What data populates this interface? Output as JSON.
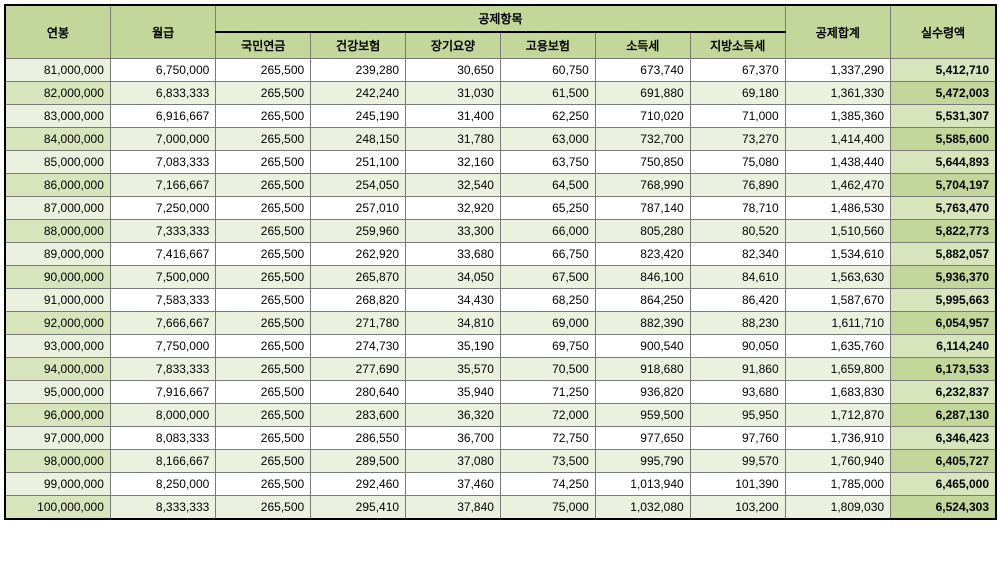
{
  "headers": {
    "salary": "연봉",
    "monthly": "월급",
    "deductionGroup": "공제항목",
    "deductions": [
      "국민연금",
      "건강보험",
      "장기요양",
      "고용보험",
      "소득세",
      "지방소득세"
    ],
    "total": "공제합계",
    "net": "실수령액"
  },
  "rows": [
    [
      "81,000,000",
      "6,750,000",
      "265,500",
      "239,280",
      "30,650",
      "60,750",
      "673,740",
      "67,370",
      "1,337,290",
      "5,412,710"
    ],
    [
      "82,000,000",
      "6,833,333",
      "265,500",
      "242,240",
      "31,030",
      "61,500",
      "691,880",
      "69,180",
      "1,361,330",
      "5,472,003"
    ],
    [
      "83,000,000",
      "6,916,667",
      "265,500",
      "245,190",
      "31,400",
      "62,250",
      "710,020",
      "71,000",
      "1,385,360",
      "5,531,307"
    ],
    [
      "84,000,000",
      "7,000,000",
      "265,500",
      "248,150",
      "31,780",
      "63,000",
      "732,700",
      "73,270",
      "1,414,400",
      "5,585,600"
    ],
    [
      "85,000,000",
      "7,083,333",
      "265,500",
      "251,100",
      "32,160",
      "63,750",
      "750,850",
      "75,080",
      "1,438,440",
      "5,644,893"
    ],
    [
      "86,000,000",
      "7,166,667",
      "265,500",
      "254,050",
      "32,540",
      "64,500",
      "768,990",
      "76,890",
      "1,462,470",
      "5,704,197"
    ],
    [
      "87,000,000",
      "7,250,000",
      "265,500",
      "257,010",
      "32,920",
      "65,250",
      "787,140",
      "78,710",
      "1,486,530",
      "5,763,470"
    ],
    [
      "88,000,000",
      "7,333,333",
      "265,500",
      "259,960",
      "33,300",
      "66,000",
      "805,280",
      "80,520",
      "1,510,560",
      "5,822,773"
    ],
    [
      "89,000,000",
      "7,416,667",
      "265,500",
      "262,920",
      "33,680",
      "66,750",
      "823,420",
      "82,340",
      "1,534,610",
      "5,882,057"
    ],
    [
      "90,000,000",
      "7,500,000",
      "265,500",
      "265,870",
      "34,050",
      "67,500",
      "846,100",
      "84,610",
      "1,563,630",
      "5,936,370"
    ],
    [
      "91,000,000",
      "7,583,333",
      "265,500",
      "268,820",
      "34,430",
      "68,250",
      "864,250",
      "86,420",
      "1,587,670",
      "5,995,663"
    ],
    [
      "92,000,000",
      "7,666,667",
      "265,500",
      "271,780",
      "34,810",
      "69,000",
      "882,390",
      "88,230",
      "1,611,710",
      "6,054,957"
    ],
    [
      "93,000,000",
      "7,750,000",
      "265,500",
      "274,730",
      "35,190",
      "69,750",
      "900,540",
      "90,050",
      "1,635,760",
      "6,114,240"
    ],
    [
      "94,000,000",
      "7,833,333",
      "265,500",
      "277,690",
      "35,570",
      "70,500",
      "918,680",
      "91,860",
      "1,659,800",
      "6,173,533"
    ],
    [
      "95,000,000",
      "7,916,667",
      "265,500",
      "280,640",
      "35,940",
      "71,250",
      "936,820",
      "93,680",
      "1,683,830",
      "6,232,837"
    ],
    [
      "96,000,000",
      "8,000,000",
      "265,500",
      "283,600",
      "36,320",
      "72,000",
      "959,500",
      "95,950",
      "1,712,870",
      "6,287,130"
    ],
    [
      "97,000,000",
      "8,083,333",
      "265,500",
      "286,550",
      "36,700",
      "72,750",
      "977,650",
      "97,760",
      "1,736,910",
      "6,346,423"
    ],
    [
      "98,000,000",
      "8,166,667",
      "265,500",
      "289,500",
      "37,080",
      "73,500",
      "995,790",
      "99,570",
      "1,760,940",
      "6,405,727"
    ],
    [
      "99,000,000",
      "8,250,000",
      "265,500",
      "292,460",
      "37,460",
      "74,250",
      "1,013,940",
      "101,390",
      "1,785,000",
      "6,465,000"
    ],
    [
      "100,000,000",
      "8,333,333",
      "265,500",
      "295,410",
      "37,840",
      "75,000",
      "1,032,080",
      "103,200",
      "1,809,030",
      "6,524,303"
    ]
  ]
}
